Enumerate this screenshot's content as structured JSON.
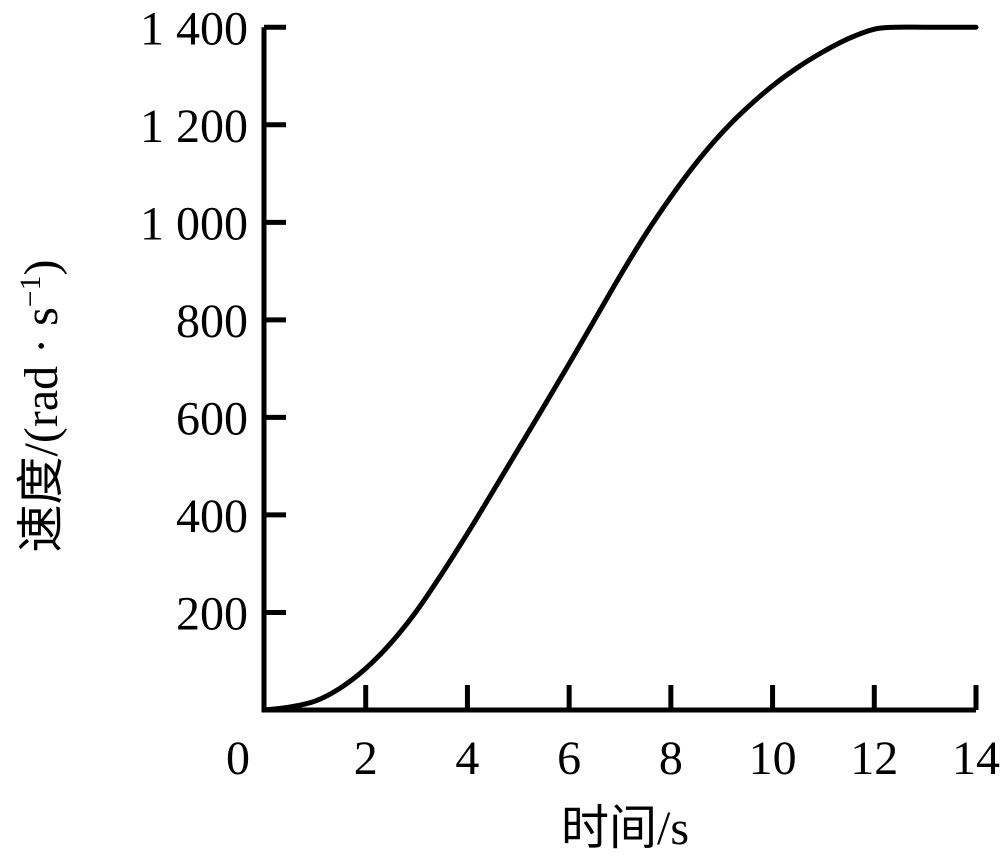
{
  "figure": {
    "background": "#ffffff",
    "line_color": "#000000"
  },
  "chart_data": {
    "type": "line",
    "title": "",
    "xlabel": "时间/s",
    "ylabel": "速度/(rad·s⁻¹)",
    "ylabel_parts": {
      "pre": "速度/(rad · s",
      "sup": "−1",
      "post": ")"
    },
    "xlim": [
      0,
      14
    ],
    "ylim": [
      0,
      1400
    ],
    "grid": false,
    "legend": "none",
    "x_ticks": [
      2,
      4,
      6,
      8,
      10,
      12,
      14
    ],
    "x_tick_labels": [
      "2",
      "4",
      "6",
      "8",
      "10",
      "12",
      "14"
    ],
    "y_ticks": [
      200,
      400,
      600,
      800,
      1000,
      1200,
      1400
    ],
    "y_tick_labels": [
      "200",
      "400",
      "600",
      "800",
      "1 000",
      "1 200",
      "1 400"
    ],
    "origin_label": "0",
    "series": [
      {
        "points": [
          [
            0,
            0
          ],
          [
            0.5,
            6
          ],
          [
            1,
            18
          ],
          [
            1.5,
            45
          ],
          [
            2,
            85
          ],
          [
            2.5,
            138
          ],
          [
            3,
            203
          ],
          [
            3.5,
            280
          ],
          [
            4,
            362
          ],
          [
            4.5,
            448
          ],
          [
            5,
            535
          ],
          [
            5.5,
            622
          ],
          [
            6,
            710
          ],
          [
            6.5,
            800
          ],
          [
            7,
            890
          ],
          [
            7.5,
            975
          ],
          [
            8,
            1052
          ],
          [
            8.5,
            1122
          ],
          [
            9,
            1183
          ],
          [
            9.5,
            1235
          ],
          [
            10,
            1280
          ],
          [
            10.5,
            1318
          ],
          [
            11,
            1350
          ],
          [
            11.5,
            1377
          ],
          [
            12,
            1396
          ],
          [
            12.4,
            1400
          ],
          [
            13,
            1400
          ],
          [
            13.5,
            1400
          ],
          [
            14,
            1400
          ]
        ]
      }
    ]
  }
}
